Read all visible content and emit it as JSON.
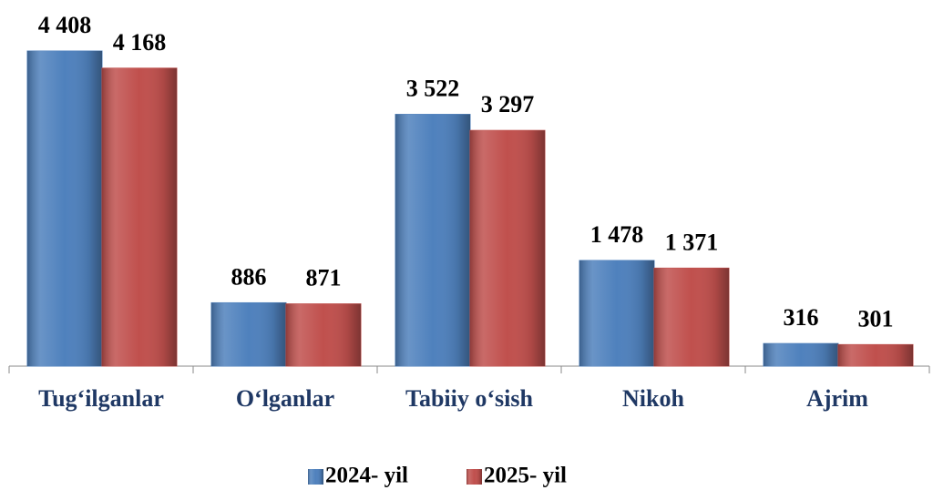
{
  "chart_data": {
    "type": "bar",
    "categories": [
      "Tug‘ilganlar",
      "O‘lganlar",
      "Tabiiy o‘sish",
      "Nikoh",
      "Ajrim"
    ],
    "series": [
      {
        "name": "2024- yil",
        "color": "#4f81bd",
        "values": [
          4408,
          886,
          3522,
          1478,
          316
        ],
        "value_labels": [
          "4 408",
          "886",
          "3 522",
          "1 478",
          "316"
        ]
      },
      {
        "name": "2025- yil",
        "color": "#c0504d",
        "values": [
          4168,
          871,
          3297,
          1371,
          301
        ],
        "value_labels": [
          "4 168",
          "871",
          "3 297",
          "1 371",
          "301"
        ]
      }
    ]
  }
}
